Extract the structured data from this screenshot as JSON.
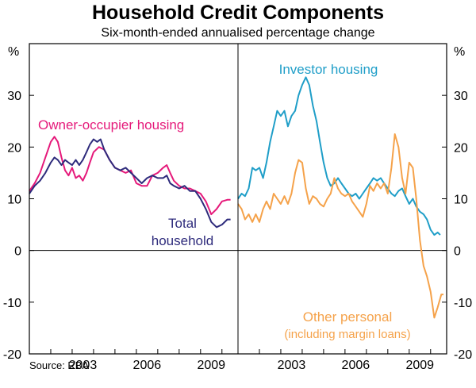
{
  "title": "Household Credit Components",
  "subtitle": "Six-month-ended annualised percentage change",
  "source": "Source: RBA",
  "colors": {
    "owner_occupier": "#e5197a",
    "total_household": "#2e2b7c",
    "investor": "#1f9ec8",
    "other_personal": "#f5a24a",
    "axis": "#000000",
    "grid": "#9a9a9a"
  },
  "chart_data": [
    {
      "type": "line",
      "panel": "left",
      "y_unit": "%",
      "ylim": [
        -20,
        40
      ],
      "xlim": [
        2000.0,
        2009.75
      ],
      "yticks": [
        "-20",
        "-10",
        "0",
        "10",
        "20",
        "30"
      ],
      "xticks": [
        "2003",
        "2006",
        "2009"
      ],
      "series": [
        {
          "name": "Owner-occupier housing",
          "label": "Owner-occupier housing",
          "color_key": "owner_occupier",
          "points": [
            [
              2000.0,
              11.5
            ],
            [
              2000.25,
              13
            ],
            [
              2000.5,
              15
            ],
            [
              2000.75,
              18
            ],
            [
              2001.0,
              21
            ],
            [
              2001.17,
              22
            ],
            [
              2001.33,
              21
            ],
            [
              2001.5,
              18
            ],
            [
              2001.67,
              15.5
            ],
            [
              2001.83,
              14.5
            ],
            [
              2002.0,
              16
            ],
            [
              2002.17,
              14
            ],
            [
              2002.33,
              14.5
            ],
            [
              2002.5,
              13.5
            ],
            [
              2002.67,
              15
            ],
            [
              2002.83,
              17
            ],
            [
              2003.0,
              19
            ],
            [
              2003.25,
              20
            ],
            [
              2003.5,
              19.5
            ],
            [
              2003.75,
              17.5
            ],
            [
              2004.0,
              16
            ],
            [
              2004.25,
              15.5
            ],
            [
              2004.5,
              15
            ],
            [
              2004.75,
              15.5
            ],
            [
              2005.0,
              13
            ],
            [
              2005.25,
              12.5
            ],
            [
              2005.5,
              12.5
            ],
            [
              2005.75,
              14.5
            ],
            [
              2006.0,
              15
            ],
            [
              2006.25,
              16
            ],
            [
              2006.42,
              16.5
            ],
            [
              2006.58,
              15
            ],
            [
              2006.75,
              13.5
            ],
            [
              2007.0,
              12.5
            ],
            [
              2007.25,
              12
            ],
            [
              2007.5,
              12
            ],
            [
              2007.75,
              11.5
            ],
            [
              2008.0,
              11
            ],
            [
              2008.25,
              9.5
            ],
            [
              2008.5,
              7
            ],
            [
              2008.75,
              8
            ],
            [
              2009.0,
              9.5
            ],
            [
              2009.25,
              9.8
            ],
            [
              2009.4,
              9.8
            ]
          ]
        },
        {
          "name": "Total household",
          "label": [
            "Total",
            "household"
          ],
          "color_key": "total_household",
          "points": [
            [
              2000.0,
              11
            ],
            [
              2000.25,
              12.5
            ],
            [
              2000.5,
              13.5
            ],
            [
              2000.75,
              15
            ],
            [
              2001.0,
              17
            ],
            [
              2001.17,
              18
            ],
            [
              2001.33,
              17.5
            ],
            [
              2001.5,
              16.5
            ],
            [
              2001.67,
              17.5
            ],
            [
              2001.83,
              17
            ],
            [
              2002.0,
              16.5
            ],
            [
              2002.17,
              17.5
            ],
            [
              2002.33,
              16.5
            ],
            [
              2002.5,
              17.5
            ],
            [
              2002.67,
              19
            ],
            [
              2002.83,
              20.5
            ],
            [
              2003.0,
              21.5
            ],
            [
              2003.17,
              21
            ],
            [
              2003.33,
              21.5
            ],
            [
              2003.5,
              19.5
            ],
            [
              2003.75,
              17.5
            ],
            [
              2004.0,
              16
            ],
            [
              2004.25,
              15.5
            ],
            [
              2004.5,
              16
            ],
            [
              2004.75,
              15
            ],
            [
              2005.0,
              14
            ],
            [
              2005.25,
              13
            ],
            [
              2005.5,
              14
            ],
            [
              2005.75,
              14.5
            ],
            [
              2006.0,
              14
            ],
            [
              2006.25,
              14
            ],
            [
              2006.42,
              14.5
            ],
            [
              2006.58,
              13
            ],
            [
              2006.75,
              12.5
            ],
            [
              2007.0,
              12
            ],
            [
              2007.25,
              12.5
            ],
            [
              2007.5,
              11.5
            ],
            [
              2007.75,
              11.5
            ],
            [
              2008.0,
              10
            ],
            [
              2008.25,
              8
            ],
            [
              2008.5,
              5.5
            ],
            [
              2008.75,
              4.5
            ],
            [
              2009.0,
              5
            ],
            [
              2009.25,
              6
            ],
            [
              2009.4,
              6
            ]
          ]
        }
      ]
    },
    {
      "type": "line",
      "panel": "right",
      "y_unit": "%",
      "ylim": [
        -20,
        40
      ],
      "xlim": [
        2000.0,
        2009.75
      ],
      "yticks": [
        "-20",
        "-10",
        "0",
        "10",
        "20",
        "30"
      ],
      "xticks": [
        "2003",
        "2006",
        "2009"
      ],
      "series": [
        {
          "name": "Investor housing",
          "label": "Investor housing",
          "color_key": "investor",
          "points": [
            [
              2000.0,
              10
            ],
            [
              2000.17,
              11
            ],
            [
              2000.33,
              10.5
            ],
            [
              2000.5,
              12
            ],
            [
              2000.67,
              16
            ],
            [
              2000.83,
              15.5
            ],
            [
              2001.0,
              16
            ],
            [
              2001.17,
              14
            ],
            [
              2001.33,
              17
            ],
            [
              2001.5,
              21
            ],
            [
              2001.67,
              24
            ],
            [
              2001.83,
              27
            ],
            [
              2002.0,
              26
            ],
            [
              2002.17,
              27
            ],
            [
              2002.33,
              24
            ],
            [
              2002.5,
              26
            ],
            [
              2002.67,
              27
            ],
            [
              2002.83,
              30
            ],
            [
              2003.0,
              32
            ],
            [
              2003.17,
              33.5
            ],
            [
              2003.33,
              32
            ],
            [
              2003.5,
              28
            ],
            [
              2003.67,
              25
            ],
            [
              2003.83,
              21
            ],
            [
              2004.0,
              17
            ],
            [
              2004.17,
              14
            ],
            [
              2004.33,
              12.5
            ],
            [
              2004.5,
              13
            ],
            [
              2004.67,
              14
            ],
            [
              2004.83,
              13
            ],
            [
              2005.0,
              12
            ],
            [
              2005.17,
              11
            ],
            [
              2005.33,
              10.5
            ],
            [
              2005.5,
              11
            ],
            [
              2005.67,
              10
            ],
            [
              2005.83,
              11
            ],
            [
              2006.0,
              12
            ],
            [
              2006.17,
              13
            ],
            [
              2006.33,
              14
            ],
            [
              2006.5,
              13.5
            ],
            [
              2006.67,
              14
            ],
            [
              2006.83,
              13
            ],
            [
              2007.0,
              12
            ],
            [
              2007.17,
              11
            ],
            [
              2007.33,
              10.5
            ],
            [
              2007.5,
              11.5
            ],
            [
              2007.67,
              12
            ],
            [
              2007.83,
              10.5
            ],
            [
              2008.0,
              9
            ],
            [
              2008.17,
              10
            ],
            [
              2008.33,
              8.5
            ],
            [
              2008.5,
              7.5
            ],
            [
              2008.67,
              7
            ],
            [
              2008.83,
              6
            ],
            [
              2009.0,
              4
            ],
            [
              2009.17,
              3
            ],
            [
              2009.33,
              3.5
            ],
            [
              2009.45,
              3
            ]
          ]
        },
        {
          "name": "Other personal",
          "label": "Other personal",
          "sublabel": "(including margin loans)",
          "color_key": "other_personal",
          "points": [
            [
              2000.0,
              9
            ],
            [
              2000.17,
              8
            ],
            [
              2000.33,
              6
            ],
            [
              2000.5,
              7
            ],
            [
              2000.67,
              5.5
            ],
            [
              2000.83,
              7
            ],
            [
              2001.0,
              5.5
            ],
            [
              2001.17,
              8
            ],
            [
              2001.33,
              9.5
            ],
            [
              2001.5,
              8
            ],
            [
              2001.67,
              11
            ],
            [
              2001.83,
              10
            ],
            [
              2002.0,
              9
            ],
            [
              2002.17,
              10.5
            ],
            [
              2002.33,
              9
            ],
            [
              2002.5,
              11
            ],
            [
              2002.67,
              15
            ],
            [
              2002.83,
              17.5
            ],
            [
              2003.0,
              17
            ],
            [
              2003.17,
              12
            ],
            [
              2003.33,
              9
            ],
            [
              2003.5,
              10.5
            ],
            [
              2003.67,
              10
            ],
            [
              2003.83,
              9
            ],
            [
              2004.0,
              8.5
            ],
            [
              2004.17,
              10
            ],
            [
              2004.33,
              11
            ],
            [
              2004.5,
              14
            ],
            [
              2004.67,
              12
            ],
            [
              2004.83,
              11
            ],
            [
              2005.0,
              10.5
            ],
            [
              2005.17,
              11
            ],
            [
              2005.33,
              9.5
            ],
            [
              2005.5,
              8.5
            ],
            [
              2005.67,
              7.5
            ],
            [
              2005.83,
              6.5
            ],
            [
              2006.0,
              9
            ],
            [
              2006.17,
              12.5
            ],
            [
              2006.33,
              11.5
            ],
            [
              2006.5,
              13
            ],
            [
              2006.67,
              12
            ],
            [
              2006.83,
              13
            ],
            [
              2007.0,
              11
            ],
            [
              2007.17,
              16
            ],
            [
              2007.33,
              22.5
            ],
            [
              2007.5,
              20
            ],
            [
              2007.67,
              14
            ],
            [
              2007.83,
              11
            ],
            [
              2008.0,
              17
            ],
            [
              2008.17,
              16
            ],
            [
              2008.33,
              10
            ],
            [
              2008.5,
              2
            ],
            [
              2008.67,
              -3
            ],
            [
              2008.83,
              -5
            ],
            [
              2009.0,
              -8
            ],
            [
              2009.17,
              -13
            ],
            [
              2009.33,
              -11
            ],
            [
              2009.5,
              -8.5
            ],
            [
              2009.6,
              -8.5
            ]
          ]
        }
      ]
    }
  ]
}
